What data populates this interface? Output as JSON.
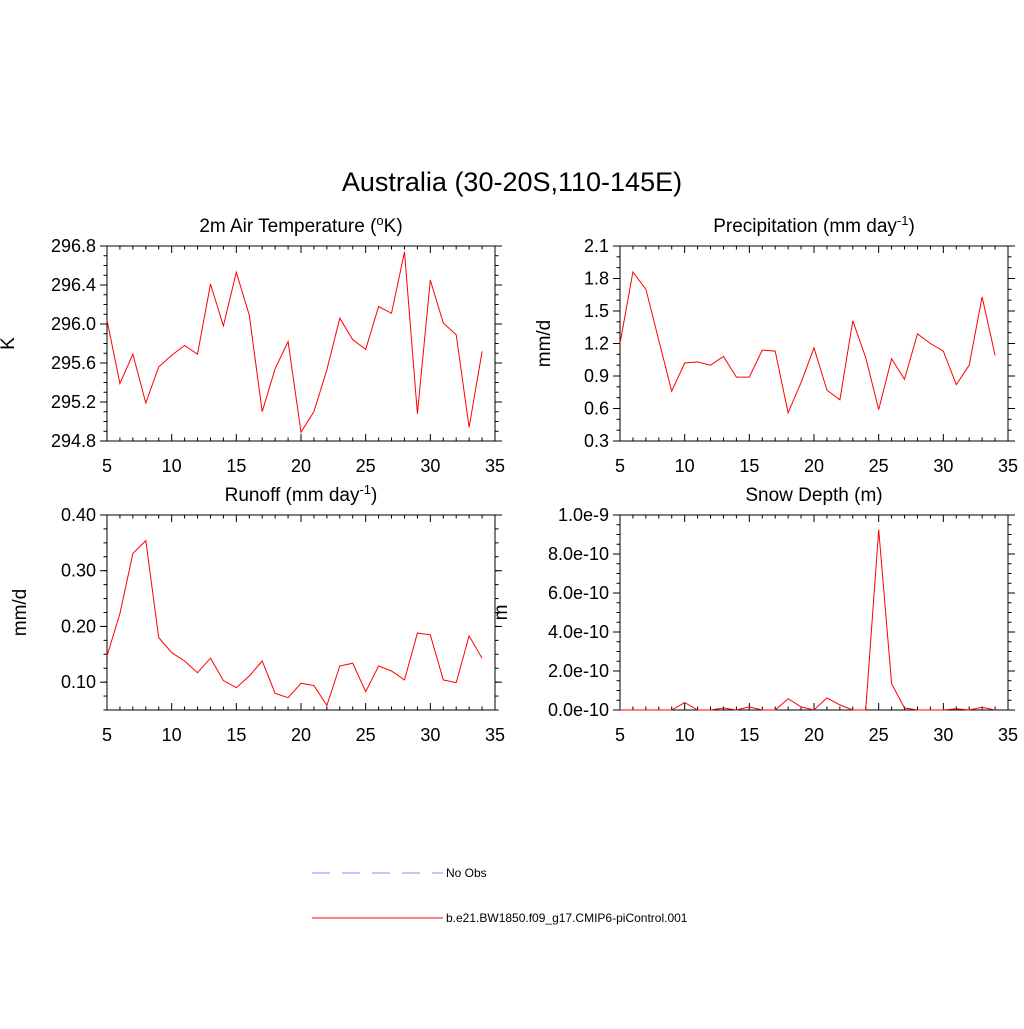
{
  "figure": {
    "title": "Australia (30-20S,110-145E)"
  },
  "legend": {
    "entries": [
      {
        "label": "No Obs",
        "color": "#8c8cff",
        "style": "dashed"
      },
      {
        "label": "b.e21.BW1850.f09_g17.CMIP6-piControl.001",
        "color": "#ff0000",
        "style": "solid"
      }
    ]
  },
  "colors": {
    "series": "#ff0000",
    "axis": "#000000",
    "obs": "#8c8cff"
  },
  "chart_data": [
    {
      "id": "temp",
      "type": "line",
      "title": "2m Air Temperature (",
      "title_sup": "o",
      "title_after": "K)",
      "xlabel": "",
      "ylabel": "K",
      "xlim": [
        5,
        35
      ],
      "ylim": [
        294.8,
        296.8
      ],
      "xticks": [
        5,
        10,
        15,
        20,
        25,
        30,
        35
      ],
      "xtick_labels": [
        "5",
        "10",
        "15",
        "20",
        "25",
        "30",
        "35"
      ],
      "yticks": [
        294.8,
        295.2,
        295.6,
        296.0,
        296.4,
        296.8
      ],
      "ytick_labels": [
        "294.8",
        "295.2",
        "295.6",
        "296.0",
        "296.4",
        "296.8"
      ],
      "y_minor_step": 0.1,
      "x": [
        5,
        6,
        7,
        8,
        9,
        10,
        11,
        12,
        13,
        14,
        15,
        16,
        17,
        18,
        19,
        20,
        21,
        22,
        23,
        24,
        25,
        26,
        27,
        28,
        29,
        30,
        31,
        32,
        33,
        34
      ],
      "series": [
        {
          "values": [
            296.04,
            295.39,
            295.69,
            295.19,
            295.56,
            295.68,
            295.78,
            295.69,
            296.41,
            295.98,
            296.53,
            296.09,
            295.1,
            295.54,
            295.82,
            294.89,
            295.1,
            295.53,
            296.06,
            295.84,
            295.74,
            296.18,
            296.11,
            296.74,
            295.08,
            296.45,
            296.01,
            295.89,
            294.94,
            295.72
          ]
        }
      ]
    },
    {
      "id": "precip",
      "type": "line",
      "title": "Precipitation (mm day",
      "title_sup": "-1",
      "title_after": ")",
      "xlabel": "",
      "ylabel": "mm/d",
      "xlim": [
        5,
        35
      ],
      "ylim": [
        0.3,
        2.1
      ],
      "xticks": [
        5,
        10,
        15,
        20,
        25,
        30,
        35
      ],
      "xtick_labels": [
        "5",
        "10",
        "15",
        "20",
        "25",
        "30",
        "35"
      ],
      "yticks": [
        0.3,
        0.6,
        0.9,
        1.2,
        1.5,
        1.8,
        2.1
      ],
      "ytick_labels": [
        "0.3",
        "0.6",
        "0.9",
        "1.2",
        "1.5",
        "1.8",
        "2.1"
      ],
      "y_minor_step": 0.1,
      "x": [
        5,
        6,
        7,
        8,
        9,
        10,
        11,
        12,
        13,
        14,
        15,
        16,
        17,
        18,
        19,
        20,
        21,
        22,
        23,
        24,
        25,
        26,
        27,
        28,
        29,
        30,
        31,
        32,
        33,
        34
      ],
      "series": [
        {
          "values": [
            1.2,
            1.86,
            1.7,
            1.23,
            0.76,
            1.02,
            1.03,
            1.0,
            1.08,
            0.89,
            0.89,
            1.14,
            1.13,
            0.56,
            0.84,
            1.16,
            0.77,
            0.68,
            1.41,
            1.07,
            0.59,
            1.06,
            0.87,
            1.29,
            1.2,
            1.13,
            0.82,
            1.0,
            1.63,
            1.09
          ]
        }
      ]
    },
    {
      "id": "runoff",
      "type": "line",
      "title": "Runoff (mm day",
      "title_sup": "-1",
      "title_after": ")",
      "xlabel": "",
      "ylabel": "mm/d",
      "xlim": [
        5,
        35
      ],
      "ylim": [
        0.05,
        0.4
      ],
      "xticks": [
        5,
        10,
        15,
        20,
        25,
        30,
        35
      ],
      "xtick_labels": [
        "5",
        "10",
        "15",
        "20",
        "25",
        "30",
        "35"
      ],
      "yticks": [
        0.1,
        0.2,
        0.3,
        0.4
      ],
      "ytick_labels": [
        "0.10",
        "0.20",
        "0.30",
        "0.40"
      ],
      "y_minor_step": 0.025,
      "x": [
        5,
        6,
        7,
        8,
        9,
        10,
        11,
        12,
        13,
        14,
        15,
        16,
        17,
        18,
        19,
        20,
        21,
        22,
        23,
        24,
        25,
        26,
        27,
        28,
        29,
        30,
        31,
        32,
        33,
        34
      ],
      "series": [
        {
          "values": [
            0.147,
            0.223,
            0.331,
            0.354,
            0.18,
            0.153,
            0.138,
            0.117,
            0.143,
            0.103,
            0.09,
            0.111,
            0.138,
            0.08,
            0.072,
            0.098,
            0.094,
            0.058,
            0.129,
            0.134,
            0.083,
            0.129,
            0.12,
            0.104,
            0.188,
            0.185,
            0.104,
            0.099,
            0.183,
            0.143
          ]
        }
      ]
    },
    {
      "id": "snow",
      "type": "line",
      "title": "Snow Depth (m)",
      "title_sup": "",
      "title_after": "",
      "xlabel": "",
      "ylabel": "m",
      "xlim": [
        5,
        35
      ],
      "ylim": [
        0,
        1e-09
      ],
      "xticks": [
        5,
        10,
        15,
        20,
        25,
        30,
        35
      ],
      "xtick_labels": [
        "5",
        "10",
        "15",
        "20",
        "25",
        "30",
        "35"
      ],
      "yticks": [
        0,
        2e-10,
        4e-10,
        6e-10,
        8e-10,
        1e-09
      ],
      "ytick_labels": [
        "0.0e-10",
        "2.0e-10",
        "4.0e-10",
        "6.0e-10",
        "8.0e-10",
        "1.0e-9"
      ],
      "y_minor_step": 5e-11,
      "x": [
        5,
        6,
        7,
        8,
        9,
        10,
        11,
        12,
        13,
        14,
        15,
        16,
        17,
        18,
        19,
        20,
        21,
        22,
        23,
        24,
        25,
        26,
        27,
        28,
        29,
        30,
        31,
        32,
        33,
        34
      ],
      "series": [
        {
          "values": [
            0,
            0,
            0,
            0,
            0,
            3.8e-11,
            0,
            0,
            1e-11,
            0,
            1.6e-11,
            0,
            0,
            5.8e-11,
            1.6e-11,
            0,
            6.2e-11,
            2.6e-11,
            0,
            0,
            9.25e-10,
            1.35e-10,
            1e-11,
            0,
            0,
            0,
            6e-12,
            0,
            1.4e-11,
            0
          ]
        }
      ]
    }
  ]
}
